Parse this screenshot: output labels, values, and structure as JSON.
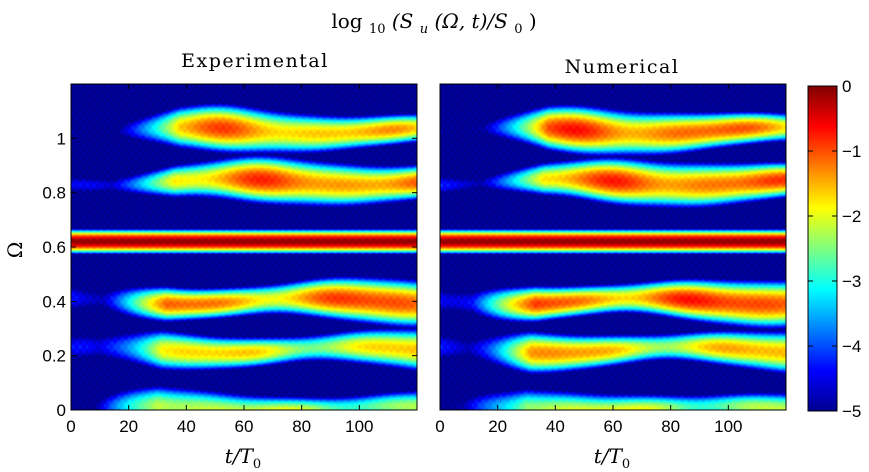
{
  "figure": {
    "title": "log",
    "title_sub": "10",
    "title_rest": "(S",
    "title_u": "u",
    "title_tail": "(Ω, t)/S",
    "title_zero": "0",
    "title_close": ")"
  },
  "chart_data": [
    {
      "type": "heatmap",
      "title": "Experimental",
      "xlabel": "t/T",
      "xlabel_sub": "0",
      "ylabel": "Ω",
      "xlim": [
        0,
        120
      ],
      "ylim": [
        0,
        1.2
      ],
      "xticks": [
        "0",
        "20",
        "40",
        "60",
        "80",
        "100"
      ],
      "yticks": [
        "0",
        "0.2",
        "0.4",
        "0.6",
        "0.8",
        "1"
      ],
      "bands": [
        {
          "omega": 0.0,
          "peak_log": -2.2
        },
        {
          "omega": 0.22,
          "peak_log": -1.8
        },
        {
          "omega": 0.4,
          "peak_log": -1.2
        },
        {
          "omega": 0.62,
          "peak_log": -0.1
        },
        {
          "omega": 0.84,
          "peak_log": -1.4
        },
        {
          "omega": 1.03,
          "peak_log": -1.6
        }
      ]
    },
    {
      "type": "heatmap",
      "title": "Numerical",
      "xlabel": "t/T",
      "xlabel_sub": "0",
      "xlim": [
        0,
        120
      ],
      "ylim": [
        0,
        1.2
      ],
      "xticks": [
        "0",
        "20",
        "40",
        "60",
        "80",
        "100"
      ],
      "bands": [
        {
          "omega": 0.0,
          "peak_log": -2.2
        },
        {
          "omega": 0.22,
          "peak_log": -1.6
        },
        {
          "omega": 0.4,
          "peak_log": -1.0
        },
        {
          "omega": 0.62,
          "peak_log": -0.1
        },
        {
          "omega": 0.84,
          "peak_log": -1.3
        },
        {
          "omega": 1.03,
          "peak_log": -1.3
        }
      ]
    }
  ],
  "colorbar": {
    "range": [
      -5,
      0
    ],
    "ticks": [
      "0",
      "−1",
      "−2",
      "−3",
      "−4",
      "−5"
    ],
    "colormap": "jet"
  }
}
